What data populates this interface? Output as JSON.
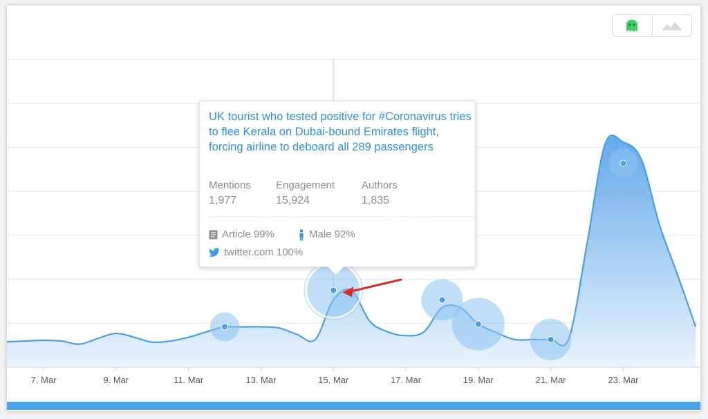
{
  "chart_data": {
    "type": "area",
    "x_labels": [
      "7. Mar",
      "9. Mar",
      "11. Mar",
      "13. Mar",
      "15. Mar",
      "17. Mar",
      "19. Mar",
      "21. Mar",
      "23. Mar"
    ],
    "y_min": 0,
    "y_max": 8,
    "grid": "horizontal",
    "series": [
      {
        "points": [
          {
            "x": 5.8,
            "y": 0.65
          },
          {
            "x": 6.0,
            "y": 0.66
          },
          {
            "x": 6.5,
            "y": 0.68
          },
          {
            "x": 7.0,
            "y": 0.7
          },
          {
            "x": 7.5,
            "y": 0.68
          },
          {
            "x": 8.0,
            "y": 0.6
          },
          {
            "x": 8.5,
            "y": 0.75
          },
          {
            "x": 9.0,
            "y": 0.88
          },
          {
            "x": 9.5,
            "y": 0.78
          },
          {
            "x": 10.0,
            "y": 0.65
          },
          {
            "x": 10.5,
            "y": 0.68
          },
          {
            "x": 11.0,
            "y": 0.78
          },
          {
            "x": 11.5,
            "y": 0.92
          },
          {
            "x": 12.0,
            "y": 1.05
          },
          {
            "x": 12.5,
            "y": 1.05
          },
          {
            "x": 13.0,
            "y": 1.05
          },
          {
            "x": 13.5,
            "y": 1.02
          },
          {
            "x": 14.0,
            "y": 0.85
          },
          {
            "x": 14.5,
            "y": 0.72
          },
          {
            "x": 15.0,
            "y": 1.75
          },
          {
            "x": 15.5,
            "y": 2.0
          },
          {
            "x": 16.0,
            "y": 1.2
          },
          {
            "x": 16.5,
            "y": 0.92
          },
          {
            "x": 17.0,
            "y": 0.82
          },
          {
            "x": 17.5,
            "y": 0.92
          },
          {
            "x": 18.0,
            "y": 1.55
          },
          {
            "x": 18.5,
            "y": 1.55
          },
          {
            "x": 19.0,
            "y": 1.12
          },
          {
            "x": 19.5,
            "y": 0.9
          },
          {
            "x": 20.0,
            "y": 0.72
          },
          {
            "x": 20.5,
            "y": 0.72
          },
          {
            "x": 21.0,
            "y": 0.72
          },
          {
            "x": 21.5,
            "y": 0.75
          },
          {
            "x": 22.0,
            "y": 3.2
          },
          {
            "x": 22.5,
            "y": 5.8
          },
          {
            "x": 23.0,
            "y": 5.85
          },
          {
            "x": 23.5,
            "y": 5.4
          },
          {
            "x": 24.0,
            "y": 3.7
          },
          {
            "x": 24.5,
            "y": 2.4
          },
          {
            "x": 25.0,
            "y": 1.05
          }
        ]
      }
    ],
    "markers": [
      {
        "x": 12.0,
        "y": 1.05,
        "bubble": "small"
      },
      {
        "x": 15.0,
        "y": 2.0,
        "bubble": "large",
        "selected": true
      },
      {
        "x": 18.0,
        "y": 1.75,
        "bubble": "medium"
      },
      {
        "x": 19.0,
        "y": 1.12,
        "bubble": "large"
      },
      {
        "x": 21.0,
        "y": 0.72,
        "bubble": "medium"
      },
      {
        "x": 23.0,
        "y": 5.3,
        "bubble": "small"
      }
    ],
    "annotation": {
      "type": "arrow",
      "color": "#d92c2c",
      "points_to_x": 15.0
    }
  },
  "tooltip": {
    "headline": "UK tourist who tested positive for #Coronavirus tries to flee Kerala on Dubai-bound Emirates flight, forcing airline to deboard all 289 passengers",
    "stats": [
      {
        "label": "Mentions",
        "value": "1,977"
      },
      {
        "label": "Engagement",
        "value": "15,924"
      },
      {
        "label": "Authors",
        "value": "1,835"
      }
    ],
    "article": "Article 99%",
    "gender": "Male 92%",
    "source": "twitter.com 100%"
  },
  "toggle": {
    "options": [
      {
        "icon": "ghost-icon",
        "active": true
      },
      {
        "icon": "mountain-icon",
        "active": false
      }
    ]
  },
  "colors": {
    "line": "#4a9de4",
    "fill_top": "#66abec",
    "fill_bottom": "#e9f3fd",
    "bubble": "#8cc2f2",
    "link": "#2f8fde",
    "grid": "#e6e6e6",
    "scrollbar": "#4aa1ec",
    "ghost": "#3ecf6a"
  }
}
